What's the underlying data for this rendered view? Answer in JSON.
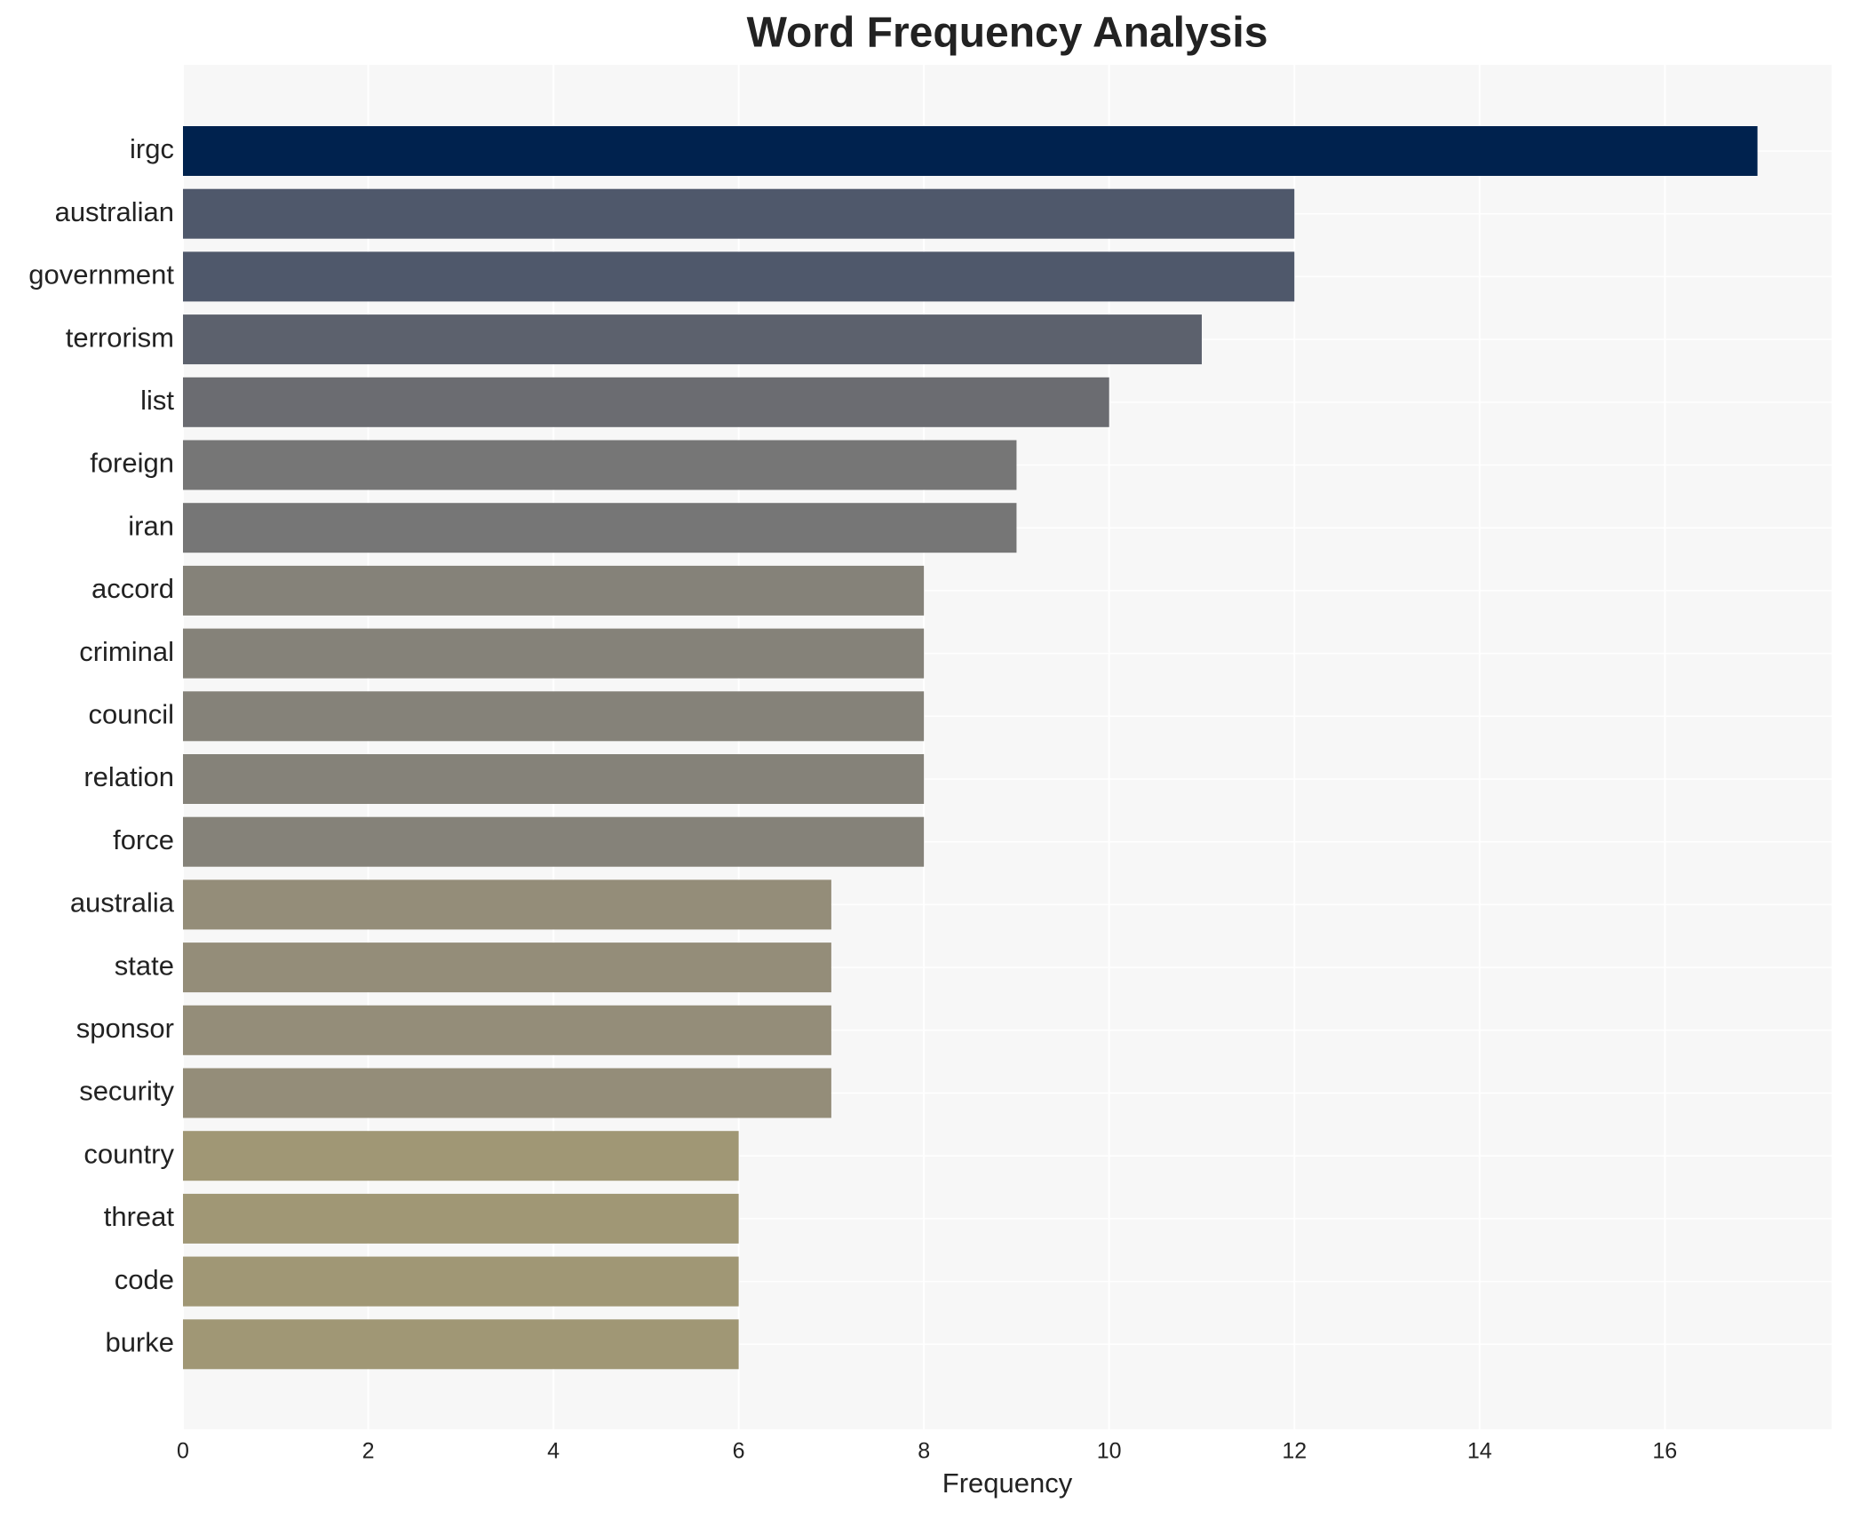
{
  "chart_data": {
    "type": "barh",
    "title": "Word Frequency Analysis",
    "x_label": "Frequency",
    "categories": [
      "irgc",
      "australian",
      "government",
      "terrorism",
      "list",
      "foreign",
      "iran",
      "accord",
      "criminal",
      "council",
      "relation",
      "force",
      "australia",
      "state",
      "sponsor",
      "security",
      "country",
      "threat",
      "code",
      "burke"
    ],
    "values": [
      17,
      12,
      12,
      11,
      10,
      9,
      9,
      8,
      8,
      8,
      8,
      8,
      7,
      7,
      7,
      7,
      6,
      6,
      6,
      6
    ],
    "colors": [
      "#00224e",
      "#4f586b",
      "#4f586b",
      "#5c616d",
      "#6b6c71",
      "#767676",
      "#767676",
      "#858279",
      "#858279",
      "#858279",
      "#858279",
      "#858279",
      "#948d79",
      "#948d79",
      "#948d79",
      "#948d79",
      "#a09775",
      "#a09775",
      "#a09775",
      "#a09775"
    ],
    "xlim": [
      0,
      17.8
    ],
    "xticks": [
      0,
      2,
      4,
      6,
      8,
      10,
      12,
      14,
      16
    ],
    "grid": true
  }
}
